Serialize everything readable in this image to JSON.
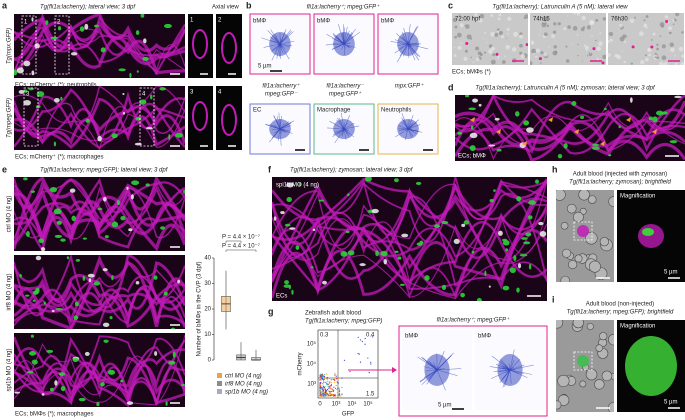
{
  "panel_labels": [
    "a",
    "b",
    "c",
    "d",
    "e",
    "f",
    "g",
    "h",
    "i"
  ],
  "a": {
    "title": "Tg(fli1a:lacherry); lateral view; 3 dpf",
    "axial_title": "Axial view",
    "row1_label": "Tg(mpx:GFP)",
    "row1_caption": "ECs; mCherry⁺ (*); neutrophils",
    "row2_label": "Tg(mpeg:GFP)",
    "row2_caption": "ECs; mCherry⁺ (*); macrophages",
    "boxes": [
      "1",
      "2",
      "3",
      "4"
    ]
  },
  "b": {
    "top_title": "fli1a:lacherry⁺; mpeg:GFP⁺",
    "top_images": [
      "bMΦ",
      "bMΦ",
      "bMΦ"
    ],
    "scale": "5 µm",
    "bottom_titles": [
      [
        "fli1a:lacherry⁺",
        "mpeg:GFP⁻"
      ],
      [
        "fli1a:lacherry⁻",
        "mpeg:GFP⁺"
      ],
      [
        "mpx:GFP⁺"
      ]
    ],
    "bottom_images": [
      "EC",
      "Macrophage",
      "Neutrophils"
    ]
  },
  "c": {
    "title": "Tg(fli1a:lacherry); Latrunculin A (5 nM); lateral view",
    "times": [
      "72:00 hpf",
      "74h15",
      "76h30"
    ],
    "caption": "ECs; bMΦs (*)"
  },
  "d": {
    "title": "Tg(fli1a:lacherry); Latrunculin A (5 nM); zymosan; lateral view; 3 dpf",
    "caption": "ECs; bMΦ"
  },
  "e": {
    "title": "Tg(fli1a:lacherry; mpeg:GFP); lateral view; 3 dpf",
    "rows": [
      "ctrl MO (4 ng)",
      "irf8 MO (4 ng)",
      "spi1b MO (4 ng)"
    ],
    "caption": "ECs; bMΦs (*); macrophages",
    "plot": {
      "y_label": "Number of bMΦs in the CVP (3 dpf)",
      "ylim": [
        0,
        40
      ],
      "yticks": [
        0,
        10,
        20,
        30,
        40
      ],
      "p_values": [
        "P = 4.4 × 10⁻⁷",
        "P = 4.4 × 10⁻⁷"
      ],
      "series": [
        {
          "name": "ctrl MO (4 ng)",
          "color": "#e8a24a",
          "min": 12,
          "q1": 19,
          "median": 22,
          "q3": 25,
          "max": 35
        },
        {
          "name": "irf8 MO (4 ng)",
          "color": "#8c8c8c",
          "min": 0,
          "q1": 0,
          "median": 1,
          "q3": 2,
          "max": 7
        },
        {
          "name": "spi1b MO (4 ng)",
          "color": "#a9a9c4",
          "min": 0,
          "q1": 0,
          "median": 0,
          "q3": 1,
          "max": 4
        }
      ]
    }
  },
  "f": {
    "title": "Tg(fli1a:lacherry); zymosan; lateral view; 3 dpf",
    "condition": "spi1b MO (4 ng)",
    "caption": "ECs"
  },
  "g": {
    "title": "Zebrafish adult blood",
    "subtitle": "Tg(fli1a:lacherry; mpeg:GFP)",
    "y_label": "mCherry",
    "x_label": "GFP",
    "xticks": [
      "0",
      "10³",
      "10⁴",
      "10⁵"
    ],
    "yticks": [
      "10³",
      "10⁴",
      "10⁵"
    ],
    "quadrants": [
      "0.3",
      "0.4",
      "1.5"
    ],
    "gate_title": "fli1a:lacherry⁺; mpeg:GFP⁺",
    "images": [
      "bMΦ",
      "bMΦ"
    ],
    "scale": "5 µm"
  },
  "h": {
    "title": "Adult blood (injected with zymosan)",
    "subtitle": "Tg(fli1a:lacherry; zymosan); brightfield",
    "inset": "Magnification",
    "scale": "5 µm"
  },
  "i": {
    "title": "Adult blood (non-injected)",
    "subtitle": "Tg(fli1a:lacherry; mpeg:GFP); brightfield",
    "inset": "Magnification",
    "scale": "5 µm"
  }
}
